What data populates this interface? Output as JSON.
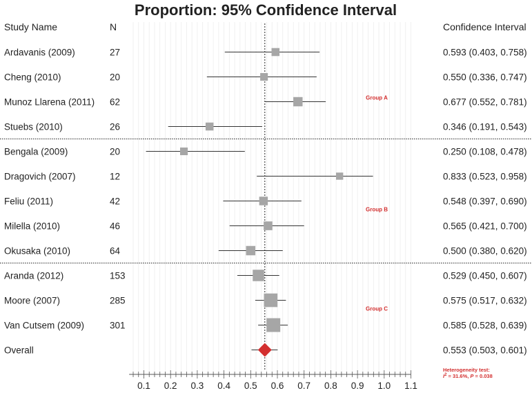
{
  "chart_data": {
    "type": "forest",
    "title": "Proportion: 95% Confidence Interval",
    "columns": {
      "study": "Study Name",
      "n": "N",
      "ci": "Confidence Interval"
    },
    "x_ticks": [
      0.1,
      0.2,
      0.3,
      0.4,
      0.5,
      0.6,
      0.7,
      0.8,
      0.9,
      1.0,
      1.1
    ],
    "x_tick_labels": [
      "0.1",
      "0.2",
      "0.3",
      "0.4",
      "0.5",
      "0.6",
      "0.7",
      "0.8",
      "0.9",
      "1.0",
      "1.1"
    ],
    "xlim": [
      0.05,
      1.1
    ],
    "reference_line": 0.553,
    "marker_color": "#a6a6a6",
    "overall_color": "#d32f2f",
    "groups": [
      {
        "label": "Group A",
        "studies": [
          {
            "name": "Ardavanis (2009)",
            "n": "27",
            "estimate": 0.593,
            "lower": 0.403,
            "upper": 0.758,
            "ci_text": "0.593 (0.403, 0.758)"
          },
          {
            "name": "Cheng (2010)",
            "n": "20",
            "estimate": 0.55,
            "lower": 0.336,
            "upper": 0.747,
            "ci_text": "0.550 (0.336, 0.747)"
          },
          {
            "name": "Munoz Llarena (2011)",
            "n": "62",
            "estimate": 0.677,
            "lower": 0.552,
            "upper": 0.781,
            "ci_text": "0.677 (0.552, 0.781)"
          },
          {
            "name": "Stuebs (2010)",
            "n": "26",
            "estimate": 0.346,
            "lower": 0.191,
            "upper": 0.543,
            "ci_text": "0.346 (0.191, 0.543)"
          }
        ]
      },
      {
        "label": "Group B",
        "studies": [
          {
            "name": "Bengala (2009)",
            "n": "20",
            "estimate": 0.25,
            "lower": 0.108,
            "upper": 0.478,
            "ci_text": "0.250 (0.108, 0.478)"
          },
          {
            "name": "Dragovich (2007)",
            "n": "12",
            "estimate": 0.833,
            "lower": 0.523,
            "upper": 0.958,
            "ci_text": "0.833 (0.523, 0.958)"
          },
          {
            "name": "Feliu (2011)",
            "n": "42",
            "estimate": 0.548,
            "lower": 0.397,
            "upper": 0.69,
            "ci_text": "0.548 (0.397, 0.690)"
          },
          {
            "name": "Milella (2010)",
            "n": "46",
            "estimate": 0.565,
            "lower": 0.421,
            "upper": 0.7,
            "ci_text": "0.565 (0.421, 0.700)"
          },
          {
            "name": "Okusaka (2010)",
            "n": "64",
            "estimate": 0.5,
            "lower": 0.38,
            "upper": 0.62,
            "ci_text": "0.500 (0.380, 0.620)"
          }
        ]
      },
      {
        "label": "Group C",
        "studies": [
          {
            "name": "Aranda (2012)",
            "n": "153",
            "estimate": 0.529,
            "lower": 0.45,
            "upper": 0.607,
            "ci_text": "0.529 (0.450, 0.607)"
          },
          {
            "name": "Moore (2007)",
            "n": "285",
            "estimate": 0.575,
            "lower": 0.517,
            "upper": 0.632,
            "ci_text": "0.575 (0.517, 0.632)"
          },
          {
            "name": "Van Cutsem (2009)",
            "n": "301",
            "estimate": 0.585,
            "lower": 0.528,
            "upper": 0.639,
            "ci_text": "0.585 (0.528, 0.639)"
          }
        ]
      }
    ],
    "overall": {
      "name": "Overall",
      "estimate": 0.553,
      "lower": 0.503,
      "upper": 0.601,
      "ci_text": "0.553 (0.503, 0.601)"
    },
    "heterogeneity": {
      "line1": "Heterogeneity test:",
      "i2_symbol": "I",
      "i2_sup": "2",
      "i2_value": " = 31.6%, ",
      "p_symbol": "P",
      "p_value": " = 0.038"
    }
  }
}
